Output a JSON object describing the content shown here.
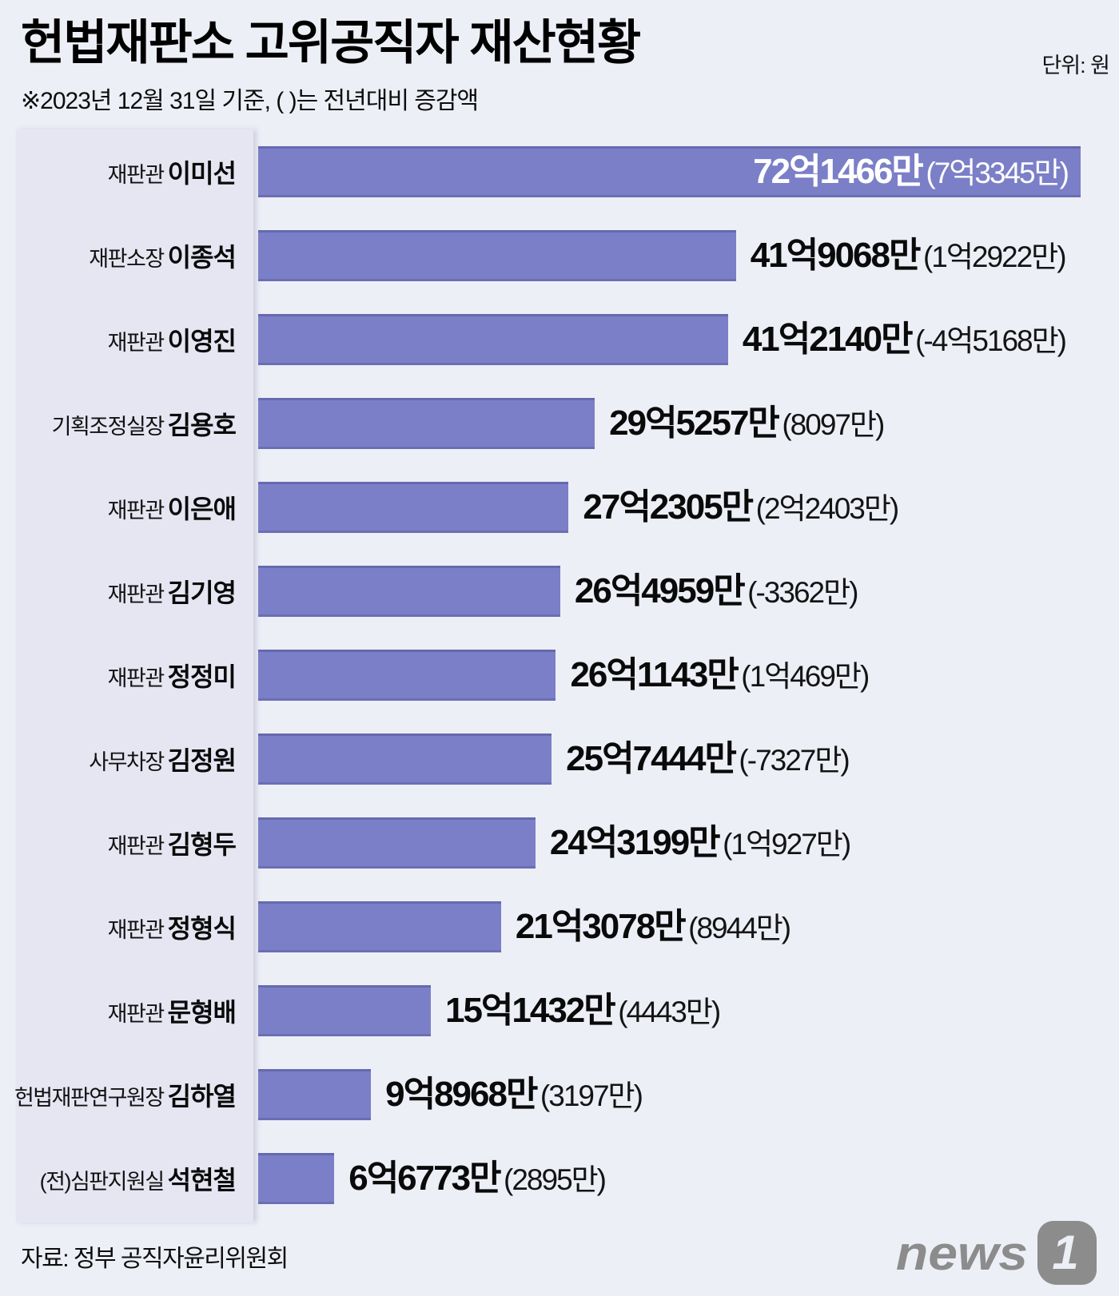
{
  "header": {
    "title": "헌법재판소 고위공직자 재산현황",
    "unit": "단위: 원",
    "subtitle": "※2023년 12월 31일 기준, ( )는 전년대비 증감액"
  },
  "chart_data": {
    "type": "bar",
    "orientation": "horizontal",
    "value_unit": "만원",
    "max_value": 721466,
    "bar_color": "#7b7fc7",
    "panel_color": "#e5e6f2",
    "background_color": "#edeff7",
    "grid": false,
    "legend": false,
    "categories": [
      "재판관 이미선",
      "재판소장 이종석",
      "재판관 이영진",
      "기획조정실장 김용호",
      "재판관 이은애",
      "재판관 김기영",
      "재판관 정정미",
      "사무차장 김정원",
      "재판관 김형두",
      "재판관 정형식",
      "재판관 문형배",
      "헌법재판연구원장 김하열",
      "(전)심판지원실 석현철"
    ],
    "values": [
      721466,
      419068,
      412140,
      295257,
      272305,
      264959,
      261143,
      257444,
      243199,
      213078,
      151432,
      98968,
      66773
    ],
    "changes": [
      73345,
      12922,
      -45168,
      8097,
      22403,
      -3362,
      10469,
      -7327,
      10927,
      8944,
      4443,
      3197,
      2895
    ],
    "rows": [
      {
        "role": "재판관",
        "name": "이미선",
        "value": 721466,
        "value_label": "72억1466만",
        "change_label": "(7억3345만)",
        "value_inside": true
      },
      {
        "role": "재판소장",
        "name": "이종석",
        "value": 419068,
        "value_label": "41억9068만",
        "change_label": "(1억2922만)",
        "value_inside": false
      },
      {
        "role": "재판관",
        "name": "이영진",
        "value": 412140,
        "value_label": "41억2140만",
        "change_label": "(-4억5168만)",
        "value_inside": false
      },
      {
        "role": "기획조정실장",
        "name": "김용호",
        "value": 295257,
        "value_label": "29억5257만",
        "change_label": "(8097만)",
        "value_inside": false
      },
      {
        "role": "재판관",
        "name": "이은애",
        "value": 272305,
        "value_label": "27억2305만",
        "change_label": "(2억2403만)",
        "value_inside": false
      },
      {
        "role": "재판관",
        "name": "김기영",
        "value": 264959,
        "value_label": "26억4959만",
        "change_label": "(-3362만)",
        "value_inside": false
      },
      {
        "role": "재판관",
        "name": "정정미",
        "value": 261143,
        "value_label": "26억1143만",
        "change_label": "(1억469만)",
        "value_inside": false
      },
      {
        "role": "사무차장",
        "name": "김정원",
        "value": 257444,
        "value_label": "25억7444만",
        "change_label": "(-7327만)",
        "value_inside": false
      },
      {
        "role": "재판관",
        "name": "김형두",
        "value": 243199,
        "value_label": "24억3199만",
        "change_label": "(1억927만)",
        "value_inside": false
      },
      {
        "role": "재판관",
        "name": "정형식",
        "value": 213078,
        "value_label": "21억3078만",
        "change_label": "(8944만)",
        "value_inside": false
      },
      {
        "role": "재판관",
        "name": "문형배",
        "value": 151432,
        "value_label": "15억1432만",
        "change_label": "(4443만)",
        "value_inside": false
      },
      {
        "role": "헌법재판연구원장",
        "name": "김하열",
        "value": 98968,
        "value_label": "9억8968만",
        "change_label": "(3197만)",
        "value_inside": false
      },
      {
        "role": "(전)심판지원실",
        "name": "석현철",
        "value": 66773,
        "value_label": "6억6773만",
        "change_label": "(2895만)",
        "value_inside": false
      }
    ]
  },
  "footer": {
    "source": "자료: 정부 공직자윤리위원회",
    "logo_text": "news",
    "logo_badge": "1"
  }
}
